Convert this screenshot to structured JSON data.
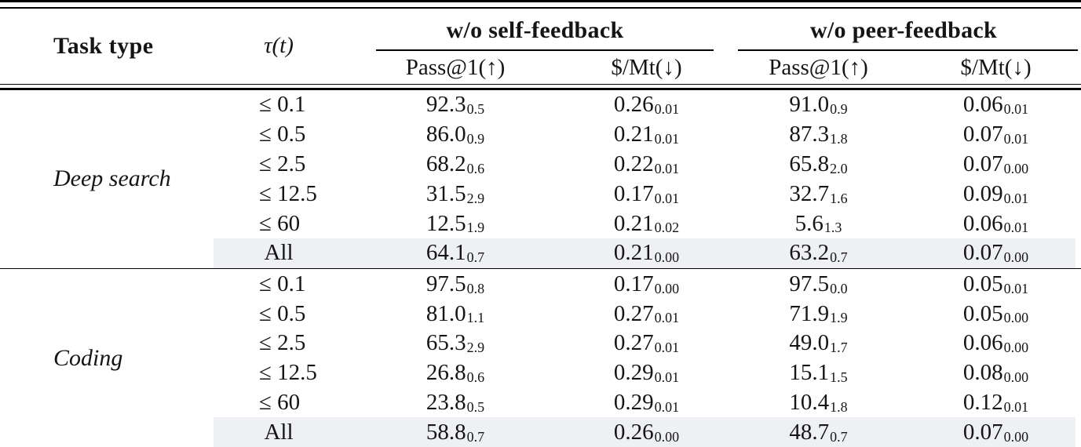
{
  "meta": {
    "background": "#ffffff",
    "text_color": "#151515",
    "rule_color": "#000000",
    "highlight_color": "#eef0f4"
  },
  "header": {
    "task_type": "Task type",
    "tau": "τ(t)",
    "groups": [
      {
        "label": "w/o self-feedback",
        "cols": [
          "Pass@1(↑)",
          "$/Mt(↓)"
        ]
      },
      {
        "label": "w/o peer-feedback",
        "cols": [
          "Pass@1(↑)",
          "$/Mt(↓)"
        ]
      }
    ]
  },
  "sections": [
    {
      "task_type": "Deep search",
      "rows": [
        {
          "tau": "≤ 0.1",
          "highlight": false,
          "values": [
            {
              "main": "92.3",
              "sub": "0.5"
            },
            {
              "main": "0.26",
              "sub": "0.01"
            },
            {
              "main": "91.0",
              "sub": "0.9"
            },
            {
              "main": "0.06",
              "sub": "0.01"
            }
          ]
        },
        {
          "tau": "≤ 0.5",
          "highlight": false,
          "values": [
            {
              "main": "86.0",
              "sub": "0.9"
            },
            {
              "main": "0.21",
              "sub": "0.01"
            },
            {
              "main": "87.3",
              "sub": "1.8"
            },
            {
              "main": "0.07",
              "sub": "0.01"
            }
          ]
        },
        {
          "tau": "≤ 2.5",
          "highlight": false,
          "values": [
            {
              "main": "68.2",
              "sub": "0.6"
            },
            {
              "main": "0.22",
              "sub": "0.01"
            },
            {
              "main": "65.8",
              "sub": "2.0"
            },
            {
              "main": "0.07",
              "sub": "0.00"
            }
          ]
        },
        {
          "tau": "≤ 12.5",
          "highlight": false,
          "values": [
            {
              "main": "31.5",
              "sub": "2.9"
            },
            {
              "main": "0.17",
              "sub": "0.01"
            },
            {
              "main": "32.7",
              "sub": "1.6"
            },
            {
              "main": "0.09",
              "sub": "0.01"
            }
          ]
        },
        {
          "tau": "≤ 60",
          "highlight": false,
          "values": [
            {
              "main": "12.5",
              "sub": "1.9"
            },
            {
              "main": "0.21",
              "sub": "0.02"
            },
            {
              "main": "5.6",
              "sub": "1.3"
            },
            {
              "main": "0.06",
              "sub": "0.01"
            }
          ]
        },
        {
          "tau": "All",
          "highlight": true,
          "values": [
            {
              "main": "64.1",
              "sub": "0.7"
            },
            {
              "main": "0.21",
              "sub": "0.00"
            },
            {
              "main": "63.2",
              "sub": "0.7"
            },
            {
              "main": "0.07",
              "sub": "0.00"
            }
          ]
        }
      ]
    },
    {
      "task_type": "Coding",
      "rows": [
        {
          "tau": "≤ 0.1",
          "highlight": false,
          "values": [
            {
              "main": "97.5",
              "sub": "0.8"
            },
            {
              "main": "0.17",
              "sub": "0.00"
            },
            {
              "main": "97.5",
              "sub": "0.0"
            },
            {
              "main": "0.05",
              "sub": "0.01"
            }
          ]
        },
        {
          "tau": "≤ 0.5",
          "highlight": false,
          "values": [
            {
              "main": "81.0",
              "sub": "1.1"
            },
            {
              "main": "0.27",
              "sub": "0.01"
            },
            {
              "main": "71.9",
              "sub": "1.9"
            },
            {
              "main": "0.05",
              "sub": "0.00"
            }
          ]
        },
        {
          "tau": "≤ 2.5",
          "highlight": false,
          "values": [
            {
              "main": "65.3",
              "sub": "2.9"
            },
            {
              "main": "0.27",
              "sub": "0.01"
            },
            {
              "main": "49.0",
              "sub": "1.7"
            },
            {
              "main": "0.06",
              "sub": "0.00"
            }
          ]
        },
        {
          "tau": "≤ 12.5",
          "highlight": false,
          "values": [
            {
              "main": "26.8",
              "sub": "0.6"
            },
            {
              "main": "0.29",
              "sub": "0.01"
            },
            {
              "main": "15.1",
              "sub": "1.5"
            },
            {
              "main": "0.08",
              "sub": "0.00"
            }
          ]
        },
        {
          "tau": "≤ 60",
          "highlight": false,
          "values": [
            {
              "main": "23.8",
              "sub": "0.5"
            },
            {
              "main": "0.29",
              "sub": "0.01"
            },
            {
              "main": "10.4",
              "sub": "1.8"
            },
            {
              "main": "0.12",
              "sub": "0.01"
            }
          ]
        },
        {
          "tau": "All",
          "highlight": true,
          "values": [
            {
              "main": "58.8",
              "sub": "0.7"
            },
            {
              "main": "0.26",
              "sub": "0.00"
            },
            {
              "main": "48.7",
              "sub": "0.7"
            },
            {
              "main": "0.07",
              "sub": "0.00"
            }
          ]
        }
      ]
    }
  ]
}
